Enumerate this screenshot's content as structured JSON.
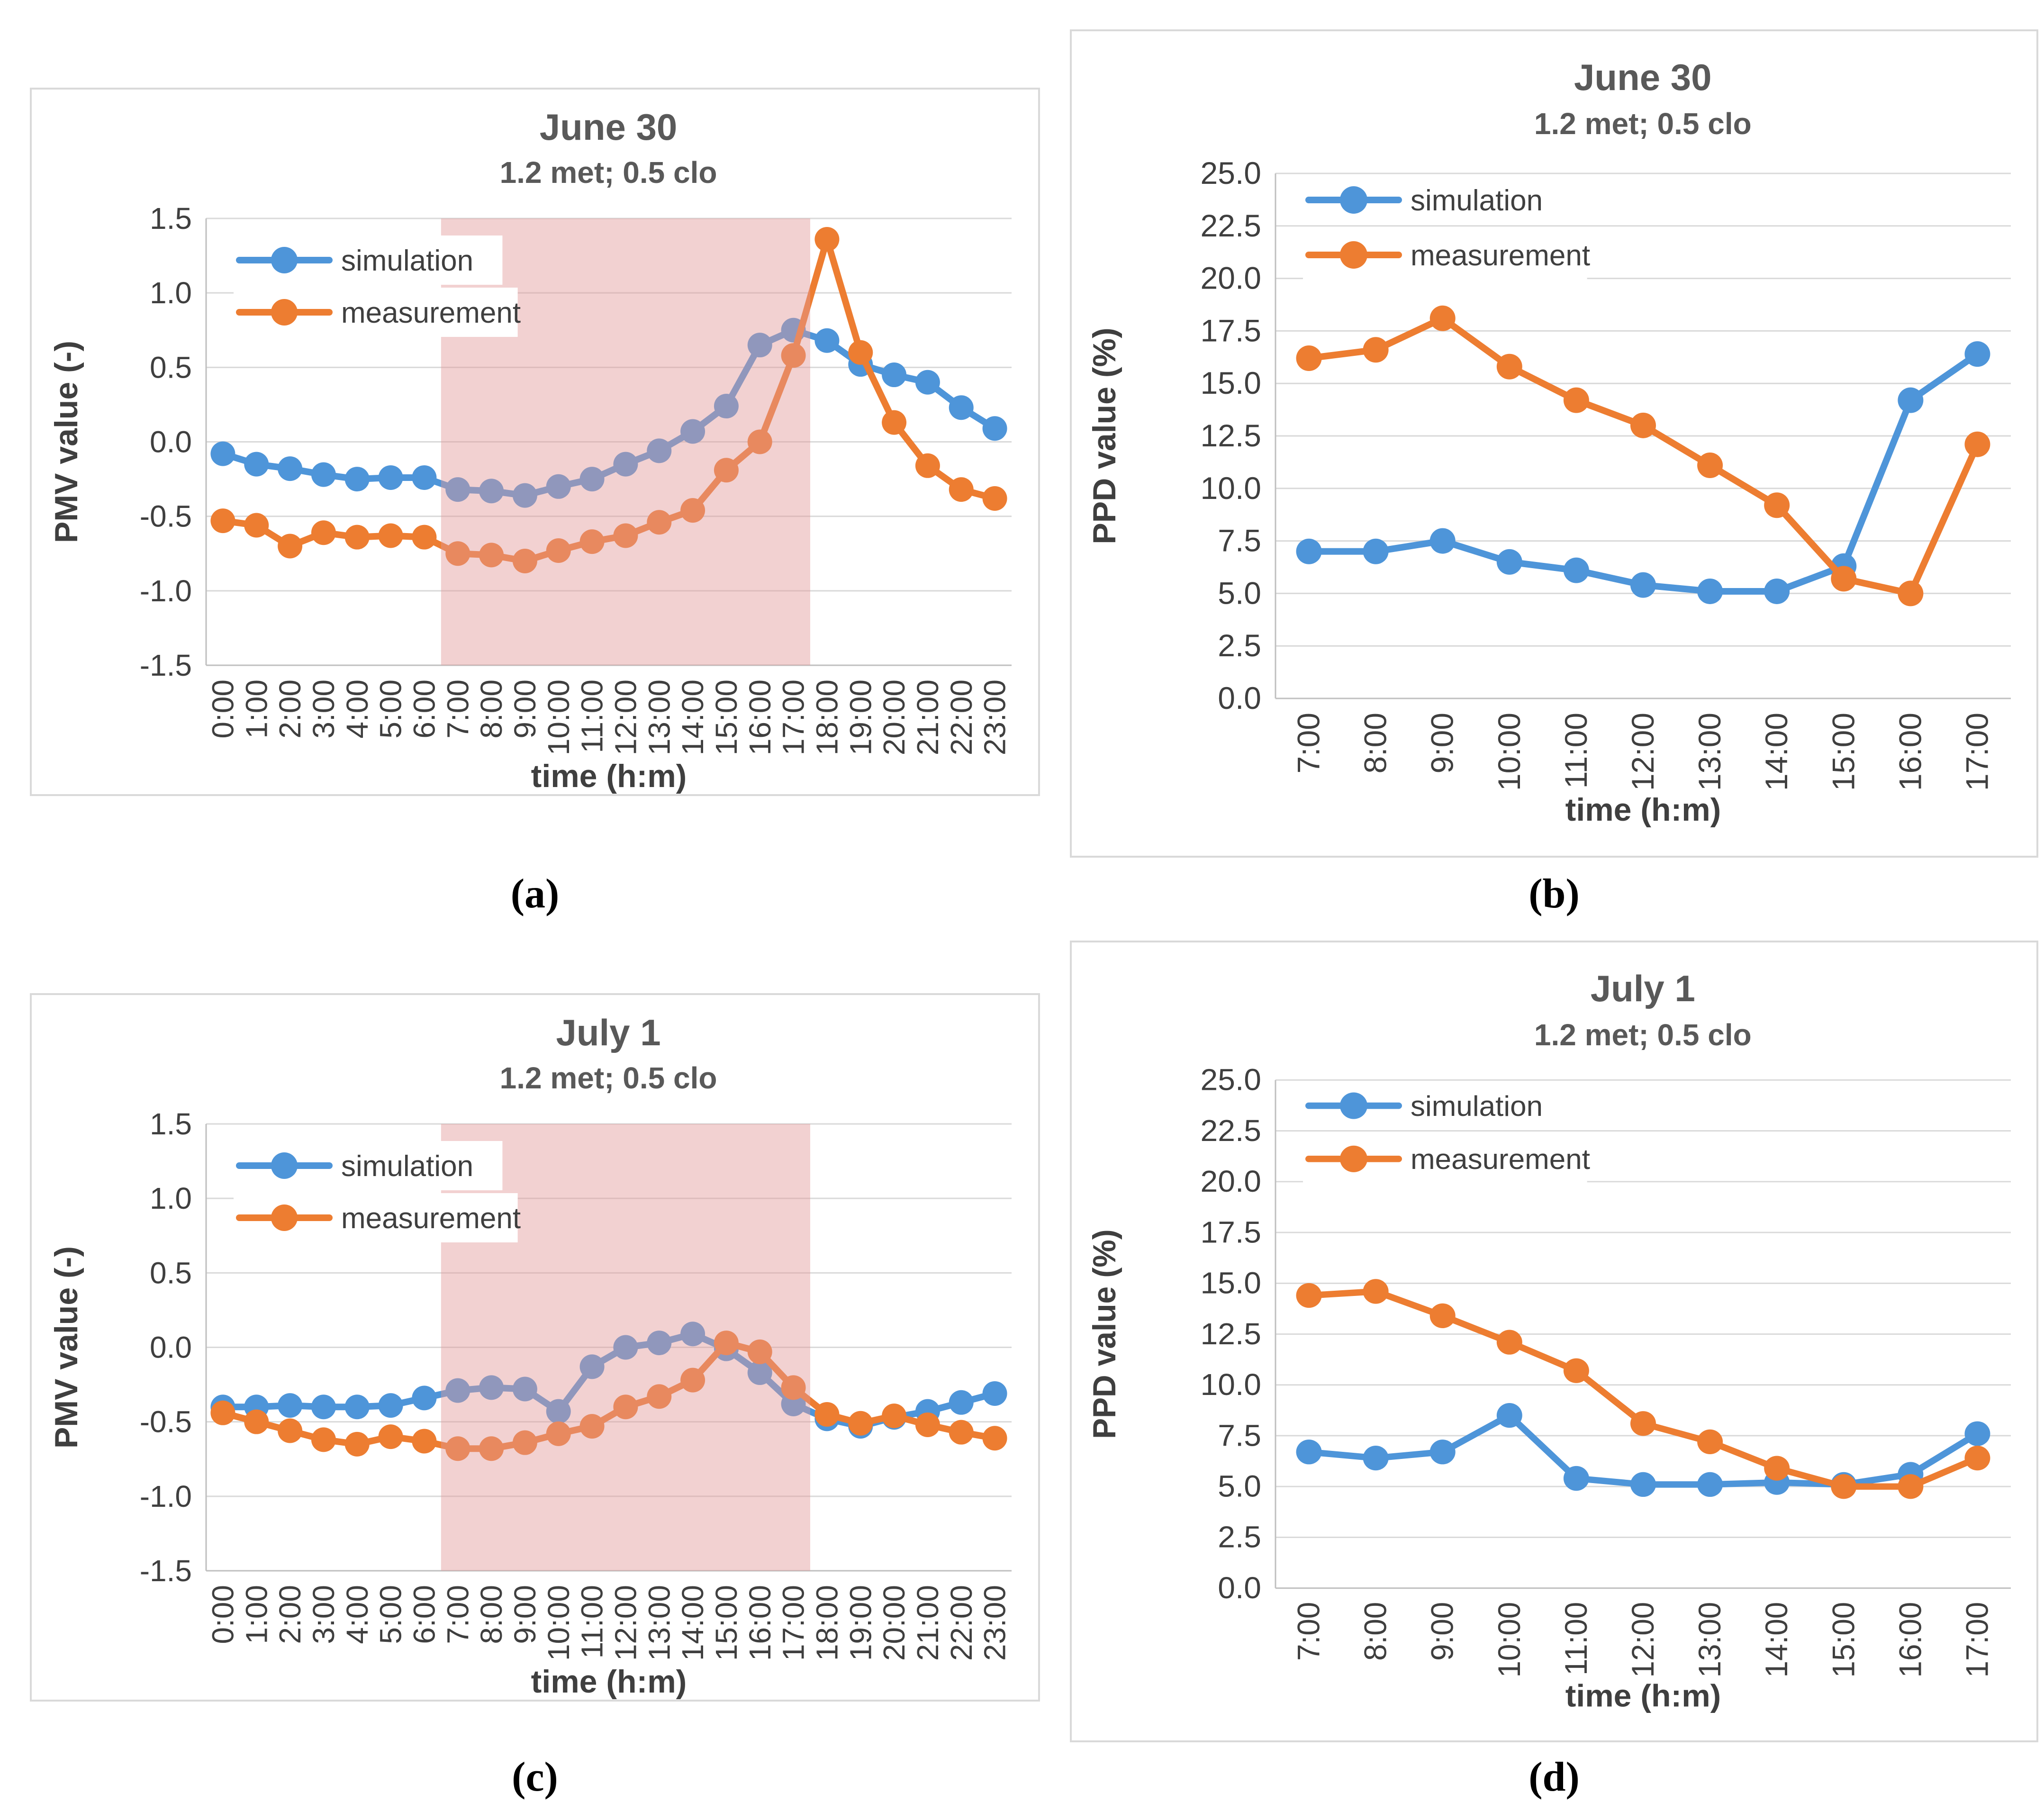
{
  "palette": {
    "simulation_blue": "#4E95D9",
    "measurement_orange": "#ED7D31",
    "band_pink": "rgba(226,153,153,0.45)",
    "gridline_gray": "#D9D9D9",
    "axis_gray": "#BFBFBF",
    "title_gray": "#595959",
    "label_gray": "#3F3F3F"
  },
  "chart_data": [
    {
      "id": "a",
      "type": "line",
      "panel_kind": "pmv",
      "title": "June 30",
      "subtitle": "1.2 met; 0.5 clo",
      "xlabel": "time (h:m)",
      "ylabel": "PMV value (-)",
      "ylim": [
        -1.5,
        1.5
      ],
      "ytick_step": 0.5,
      "ytick_decimals": 1,
      "grid": true,
      "legend_position": "top-left-inside",
      "categories": [
        "0:00",
        "1:00",
        "2:00",
        "3:00",
        "4:00",
        "5:00",
        "6:00",
        "7:00",
        "8:00",
        "9:00",
        "10:00",
        "11:00",
        "12:00",
        "13:00",
        "14:00",
        "15:00",
        "16:00",
        "17:00",
        "18:00",
        "19:00",
        "20:00",
        "21:00",
        "22:00",
        "23:00"
      ],
      "shaded_band": {
        "from": "7:00",
        "to": "17:00",
        "color": "rgba(226,153,153,0.45)"
      },
      "series": [
        {
          "name": "simulation",
          "color": "#4E95D9",
          "values": [
            -0.08,
            -0.15,
            -0.18,
            -0.22,
            -0.25,
            -0.24,
            -0.24,
            -0.32,
            -0.33,
            -0.36,
            -0.3,
            -0.25,
            -0.15,
            -0.06,
            0.07,
            0.24,
            0.65,
            0.75,
            0.68,
            0.52,
            0.45,
            0.4,
            0.23,
            0.09
          ]
        },
        {
          "name": "measurement",
          "color": "#ED7D31",
          "values": [
            -0.53,
            -0.56,
            -0.7,
            -0.61,
            -0.64,
            -0.63,
            -0.64,
            -0.75,
            -0.76,
            -0.8,
            -0.73,
            -0.67,
            -0.63,
            -0.54,
            -0.46,
            -0.19,
            0.0,
            0.58,
            1.36,
            0.6,
            0.13,
            -0.16,
            -0.32,
            -0.38
          ]
        }
      ],
      "caption": "(a)"
    },
    {
      "id": "b",
      "type": "line",
      "panel_kind": "ppd",
      "title": "June 30",
      "subtitle": "1.2 met; 0.5 clo",
      "xlabel": "time (h:m)",
      "ylabel": "PPD value (%)",
      "ylim": [
        0,
        25
      ],
      "ytick_step": 2.5,
      "ytick_decimals": 1,
      "grid": true,
      "legend_position": "top-left-inside",
      "categories": [
        "7:00",
        "8:00",
        "9:00",
        "10:00",
        "11:00",
        "12:00",
        "13:00",
        "14:00",
        "15:00",
        "16:00",
        "17:00"
      ],
      "shaded_band": null,
      "series": [
        {
          "name": "simulation",
          "color": "#4E95D9",
          "values": [
            7.0,
            7.0,
            7.5,
            6.5,
            6.1,
            5.4,
            5.1,
            5.1,
            6.3,
            14.2,
            16.4
          ]
        },
        {
          "name": "measurement",
          "color": "#ED7D31",
          "values": [
            16.2,
            16.6,
            18.1,
            15.8,
            14.2,
            13.0,
            11.1,
            9.2,
            5.7,
            5.0,
            12.1
          ]
        }
      ],
      "caption": "(b)"
    },
    {
      "id": "c",
      "type": "line",
      "panel_kind": "pmv",
      "title": "July 1",
      "subtitle": "1.2 met; 0.5 clo",
      "xlabel": "time (h:m)",
      "ylabel": "PMV value (-)",
      "ylim": [
        -1.5,
        1.5
      ],
      "ytick_step": 0.5,
      "ytick_decimals": 1,
      "grid": true,
      "legend_position": "top-left-inside",
      "categories": [
        "0:00",
        "1:00",
        "2:00",
        "3:00",
        "4:00",
        "5:00",
        "6:00",
        "7:00",
        "8:00",
        "9:00",
        "10:00",
        "11:00",
        "12:00",
        "13:00",
        "14:00",
        "15:00",
        "16:00",
        "17:00",
        "18:00",
        "19:00",
        "20:00",
        "21:00",
        "22:00",
        "23:00"
      ],
      "shaded_band": {
        "from": "7:00",
        "to": "17:00",
        "color": "rgba(226,153,153,0.45)"
      },
      "series": [
        {
          "name": "simulation",
          "color": "#4E95D9",
          "values": [
            -0.4,
            -0.4,
            -0.39,
            -0.4,
            -0.4,
            -0.39,
            -0.34,
            -0.29,
            -0.27,
            -0.28,
            -0.43,
            -0.13,
            0.0,
            0.03,
            0.09,
            -0.01,
            -0.17,
            -0.38,
            -0.48,
            -0.53,
            -0.47,
            -0.43,
            -0.37,
            -0.31
          ]
        },
        {
          "name": "measurement",
          "color": "#ED7D31",
          "values": [
            -0.44,
            -0.5,
            -0.56,
            -0.62,
            -0.65,
            -0.6,
            -0.63,
            -0.68,
            -0.68,
            -0.64,
            -0.58,
            -0.53,
            -0.4,
            -0.33,
            -0.22,
            0.03,
            -0.03,
            -0.27,
            -0.45,
            -0.51,
            -0.46,
            -0.52,
            -0.57,
            -0.61
          ]
        }
      ],
      "caption": "(c)"
    },
    {
      "id": "d",
      "type": "line",
      "panel_kind": "ppd",
      "title": "July 1",
      "subtitle": "1.2 met; 0.5 clo",
      "xlabel": "time (h:m)",
      "ylabel": "PPD value (%)",
      "ylim": [
        0,
        25
      ],
      "ytick_step": 2.5,
      "ytick_decimals": 1,
      "grid": true,
      "legend_position": "top-left-inside",
      "categories": [
        "7:00",
        "8:00",
        "9:00",
        "10:00",
        "11:00",
        "12:00",
        "13:00",
        "14:00",
        "15:00",
        "16:00",
        "17:00"
      ],
      "shaded_band": null,
      "series": [
        {
          "name": "simulation",
          "color": "#4E95D9",
          "values": [
            6.7,
            6.4,
            6.7,
            8.5,
            5.4,
            5.1,
            5.1,
            5.2,
            5.1,
            5.6,
            7.6
          ]
        },
        {
          "name": "measurement",
          "color": "#ED7D31",
          "values": [
            14.4,
            14.6,
            13.4,
            12.1,
            10.7,
            8.1,
            7.2,
            5.9,
            5.0,
            5.0,
            6.4
          ]
        }
      ],
      "caption": "(d)"
    }
  ]
}
